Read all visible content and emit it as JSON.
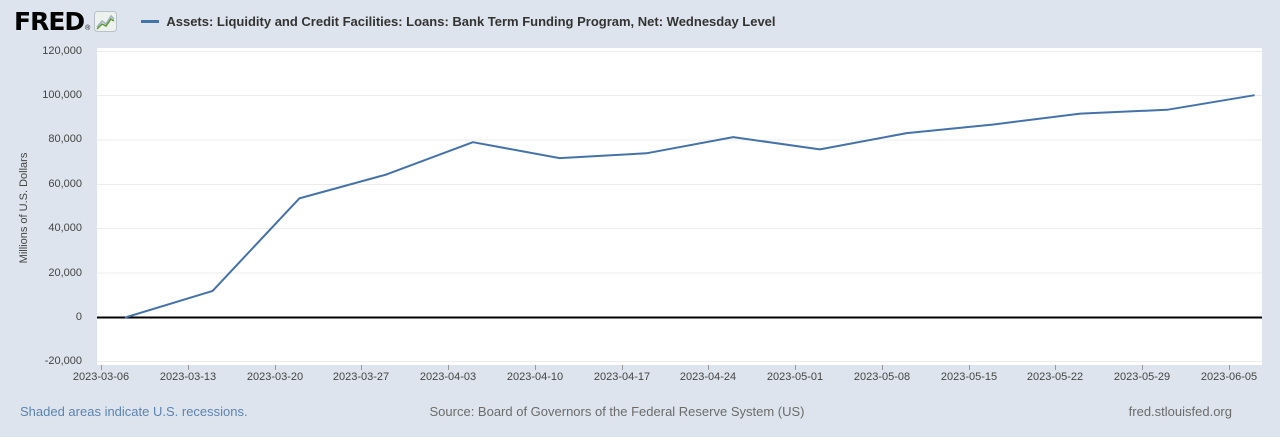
{
  "header": {
    "logo_text": "FRED",
    "logo_reg": "®",
    "series_title": "Assets: Liquidity and Credit Facilities: Loans: Bank Term Funding Program, Net: Wednesday Level"
  },
  "footer": {
    "recession_note": "Shaded areas indicate U.S. recessions.",
    "source": "Source: Board of Governors of the Federal Reserve System (US)",
    "site": "fred.stlouisfed.org"
  },
  "colors": {
    "background": "#dde4ed",
    "plot_background": "#ffffff",
    "line": "#4572a7",
    "zero_line": "#000000",
    "gridline": "#ececec",
    "tick": "#999999",
    "label_text": "#444444",
    "title_text": "#333333",
    "footer_text": "#6b6b6b",
    "link_text": "#5b84b1"
  },
  "chart_data": {
    "type": "line",
    "title": "Assets: Liquidity and Credit Facilities: Loans: Bank Term Funding Program, Net: Wednesday Level",
    "xlabel": "",
    "ylabel": "Millions of U.S. Dollars",
    "grid": true,
    "legend_position": "top-left",
    "ylim": [
      -20000,
      120000
    ],
    "x_ticks": [
      "2023-03-06",
      "2023-03-13",
      "2023-03-20",
      "2023-03-27",
      "2023-04-03",
      "2023-04-10",
      "2023-04-17",
      "2023-04-24",
      "2023-05-01",
      "2023-05-08",
      "2023-05-15",
      "2023-05-22",
      "2023-05-29",
      "2023-06-05"
    ],
    "y_ticks": {
      "values": [
        120000,
        100000,
        80000,
        60000,
        40000,
        20000,
        0,
        -20000
      ],
      "labels": [
        "120,000",
        "100,000",
        "80,000",
        "60,000",
        "40,000",
        "20,000",
        "0",
        "-20,000"
      ]
    },
    "series": [
      {
        "name": "Assets: Liquidity and Credit Facilities: Loans: Bank Term Funding Program, Net: Wednesday Level",
        "x": [
          "2023-03-08",
          "2023-03-15",
          "2023-03-22",
          "2023-03-29",
          "2023-04-05",
          "2023-04-12",
          "2023-04-19",
          "2023-04-26",
          "2023-05-03",
          "2023-05-10",
          "2023-05-17",
          "2023-05-24",
          "2023-05-31",
          "2023-06-07"
        ],
        "values": [
          0,
          11943,
          53669,
          64403,
          79021,
          71837,
          73982,
          81327,
          75778,
          83101,
          87006,
          91907,
          93615,
          100161
        ]
      }
    ]
  }
}
